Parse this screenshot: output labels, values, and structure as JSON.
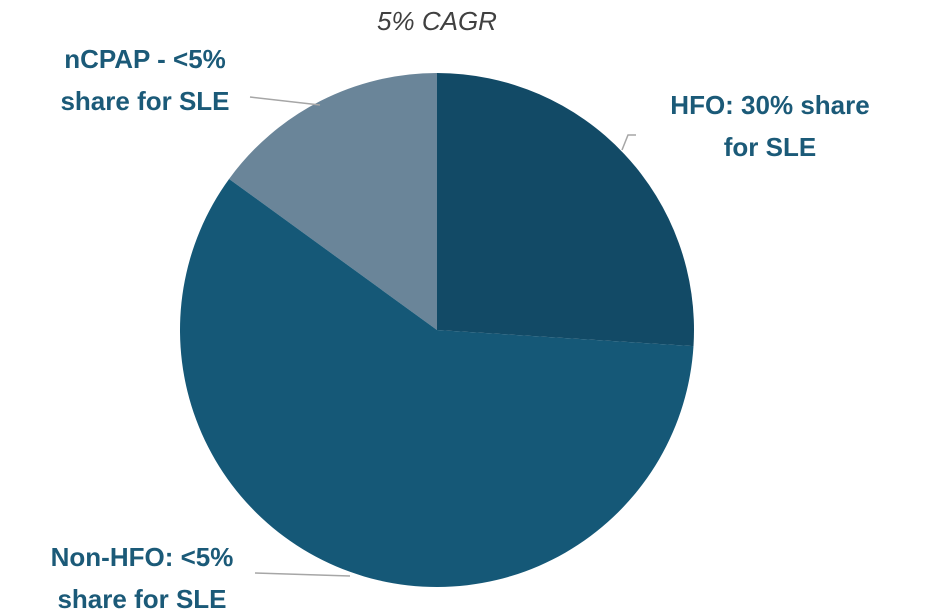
{
  "chart_data": {
    "type": "pie",
    "title": "5% CAGR",
    "categories": [
      "HFO: 30% share for SLE",
      "Non-HFO: <5% share for SLE",
      "nCPAP - <5% share for SLE"
    ],
    "values": [
      26,
      59,
      15
    ],
    "colors": [
      "#124a66",
      "#155877",
      "#6a8599"
    ]
  }
}
